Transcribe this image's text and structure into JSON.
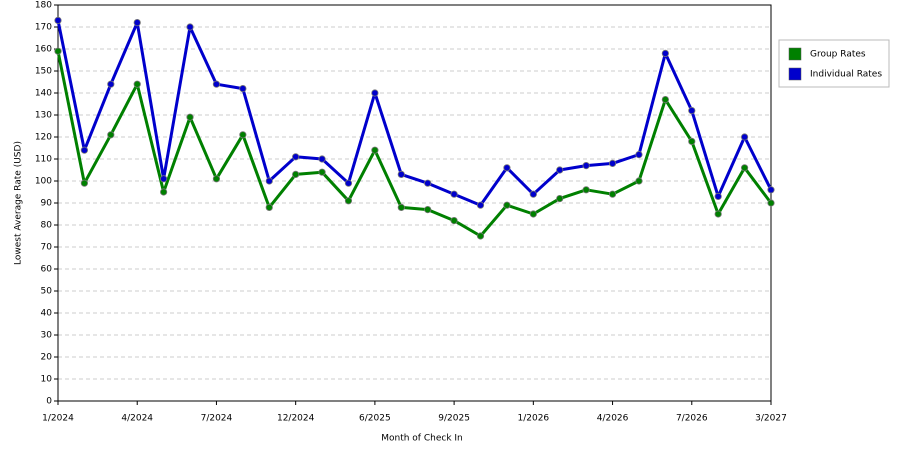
{
  "chart_data": {
    "type": "line",
    "x_label": "Month of Check In",
    "y_label": "Lowest Average Rate (USD)",
    "categories": [
      "1/2024",
      null,
      null,
      "4/2024",
      null,
      null,
      "7/2024",
      null,
      null,
      "12/2024",
      null,
      null,
      "6/2025",
      null,
      null,
      "9/2025",
      null,
      null,
      "1/2026",
      null,
      null,
      "4/2026",
      null,
      null,
      "7/2026",
      null,
      null,
      "3/2027"
    ],
    "series": [
      {
        "name": "Group Rates",
        "color": "#008000",
        "values": [
          159,
          99,
          121,
          144,
          95,
          129,
          101,
          121,
          88,
          103,
          104,
          91,
          114,
          88,
          87,
          82,
          75,
          89,
          85,
          92,
          96,
          94,
          100,
          137,
          118,
          85,
          106,
          90
        ]
      },
      {
        "name": "Individual Rates",
        "color": "#0000cc",
        "values": [
          173,
          114,
          144,
          172,
          101,
          170,
          144,
          142,
          100,
          111,
          110,
          99,
          140,
          103,
          99,
          94,
          89,
          106,
          94,
          105,
          107,
          108,
          112,
          158,
          132,
          93,
          120,
          96
        ]
      }
    ],
    "ylim": [
      0,
      180
    ],
    "yticks": [
      0,
      10,
      20,
      30,
      40,
      50,
      60,
      70,
      80,
      90,
      100,
      110,
      120,
      130,
      140,
      150,
      160,
      170,
      180
    ],
    "grid": true,
    "legend": "right"
  }
}
